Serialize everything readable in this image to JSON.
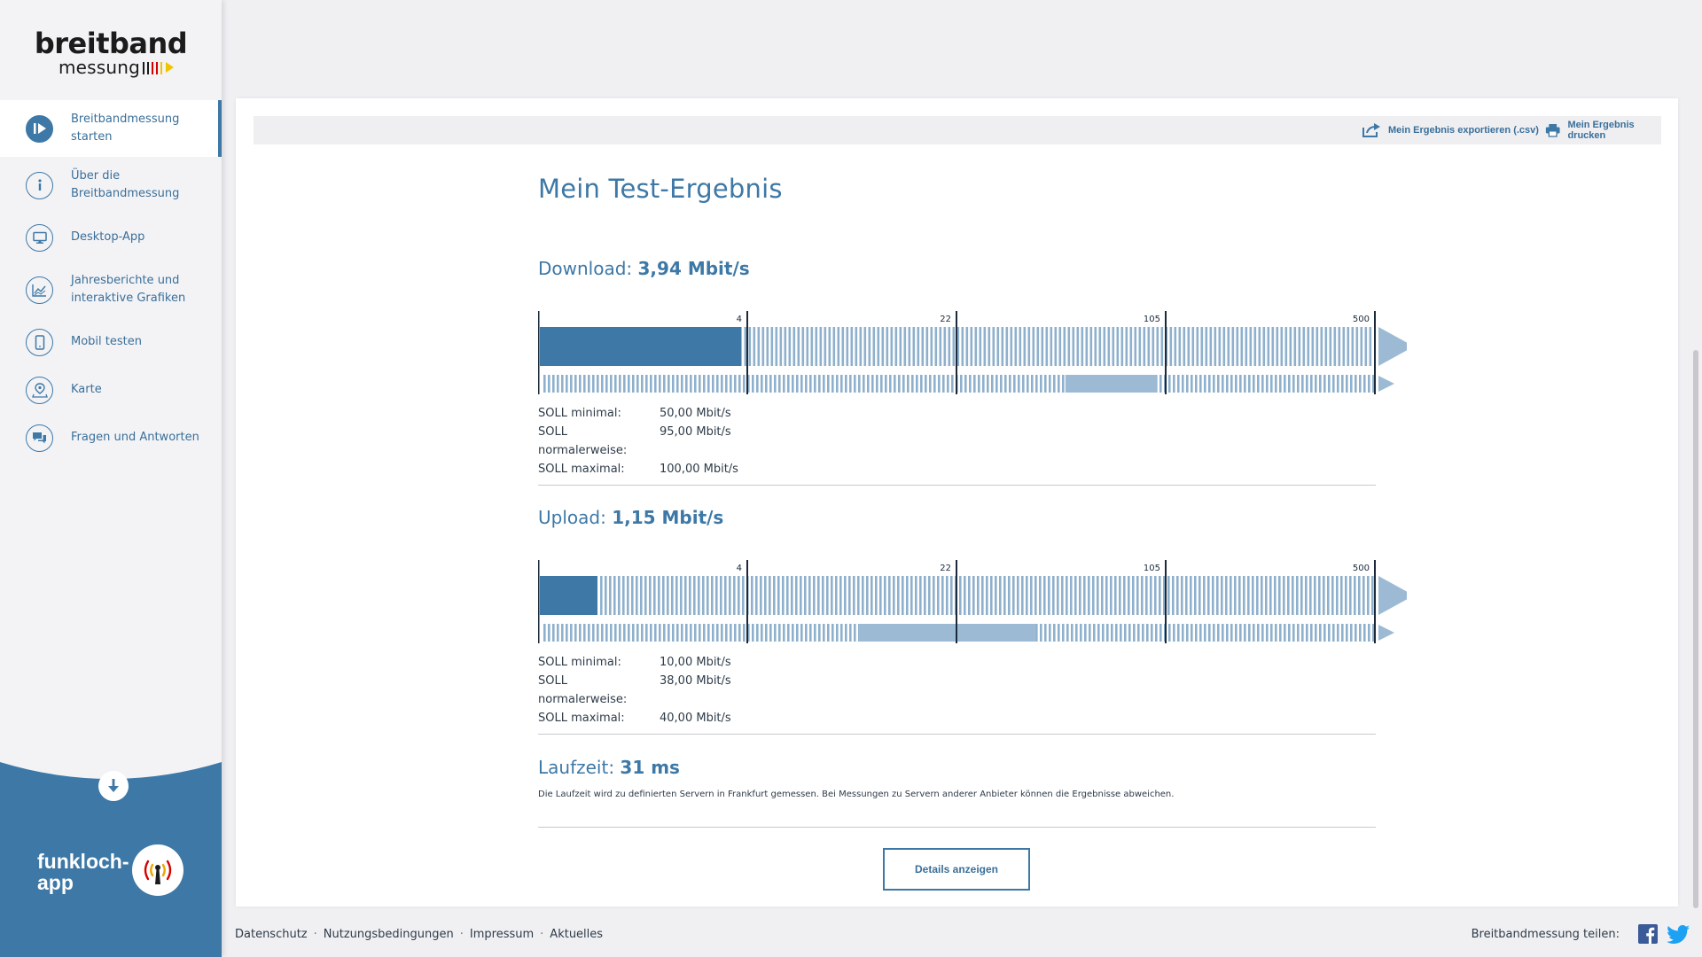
{
  "logo": {
    "line1": "breitband",
    "line2": "messung"
  },
  "nav": [
    {
      "label": "Breitbandmessung starten",
      "icon": "play-icon",
      "active": true
    },
    {
      "label": "Über die Breitbandmessung",
      "icon": "info-icon",
      "active": false
    },
    {
      "label": "Desktop-App",
      "icon": "monitor-icon",
      "active": false
    },
    {
      "label": "Jahresberichte und interaktive Grafiken",
      "icon": "chart-icon",
      "active": false
    },
    {
      "label": "Mobil testen",
      "icon": "mobile-icon",
      "active": false
    },
    {
      "label": "Karte",
      "icon": "map-pin-icon",
      "active": false
    },
    {
      "label": "Fragen und Antworten",
      "icon": "chat-icon",
      "active": false
    }
  ],
  "funkloch": {
    "line1": "funkloch-",
    "line2": "app"
  },
  "toolbar": {
    "export_label": "Mein Ergebnis exportieren (.csv)",
    "print_label": "Mein Ergebnis drucken"
  },
  "title": "Mein Test-Ergebnis",
  "download": {
    "label": "Download:",
    "value": "3,94 Mbit/s",
    "measured": 3.94,
    "soll": [
      {
        "key": "SOLL minimal:",
        "value": "50,00 Mbit/s"
      },
      {
        "key": "SOLL normalerweise:",
        "value": "95,00 Mbit/s"
      },
      {
        "key": "SOLL maximal:",
        "value": "100,00 Mbit/s"
      }
    ],
    "soll_range": [
      50,
      100
    ]
  },
  "upload": {
    "label": "Upload:",
    "value": "1,15 Mbit/s",
    "measured": 1.15,
    "soll": [
      {
        "key": "SOLL minimal:",
        "value": "10,00 Mbit/s"
      },
      {
        "key": "SOLL normalerweise:",
        "value": "38,00 Mbit/s"
      },
      {
        "key": "SOLL maximal:",
        "value": "40,00 Mbit/s"
      }
    ],
    "soll_range": [
      10,
      40
    ]
  },
  "scale_ticks": [
    4,
    22,
    105,
    500
  ],
  "scale_labels": [
    "4",
    "22",
    "105",
    "500"
  ],
  "latency": {
    "label": "Laufzeit:",
    "value": "31 ms",
    "note": "Die Laufzeit wird zu definierten Servern in Frankfurt gemessen. Bei Messungen zu Servern anderer Anbieter können die Ergebnisse abweichen."
  },
  "details_label": "Details anzeigen",
  "footer": {
    "links": [
      "Datenschutz",
      "Nutzungsbedingungen",
      "Impressum",
      "Aktuelles"
    ],
    "share_label": "Breitbandmessung teilen:"
  },
  "colors": {
    "accent": "#3d78a6",
    "bar_light": "#9cbad4",
    "bar_stripe": "#8fb0cc"
  }
}
